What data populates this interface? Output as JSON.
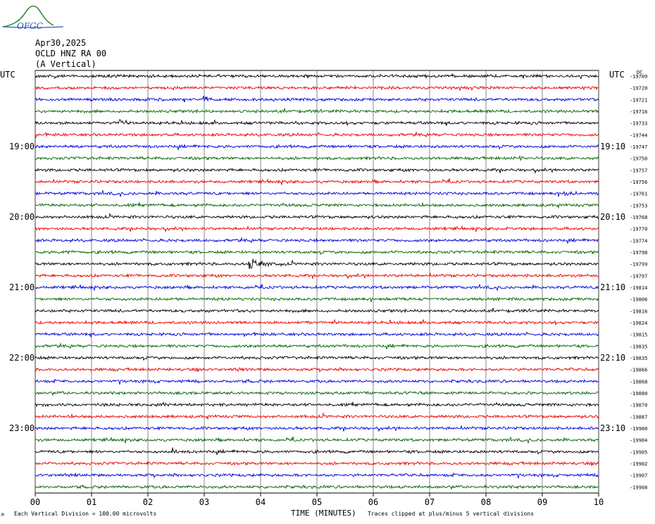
{
  "header": {
    "logo_text": "OFGC",
    "date": "Apr30,2025",
    "station": "OCLD HNZ RA 00",
    "component": "(A Vertical)"
  },
  "left_axis": {
    "label": "UTC",
    "hour_labels": [
      {
        "row": 6,
        "text": "19:00"
      },
      {
        "row": 12,
        "text": "20:00"
      },
      {
        "row": 18,
        "text": "21:00"
      },
      {
        "row": 24,
        "text": "22:00"
      },
      {
        "row": 30,
        "text": "23:00"
      }
    ]
  },
  "right_axis": {
    "label": "UTC",
    "dc_label": "DC",
    "hour_labels": [
      {
        "row": 6,
        "text": "19:10"
      },
      {
        "row": 12,
        "text": "20:10"
      },
      {
        "row": 18,
        "text": "21:10"
      },
      {
        "row": 24,
        "text": "22:10"
      },
      {
        "row": 30,
        "text": "23:10"
      }
    ],
    "dc_offsets": [
      "-19709",
      "-19720",
      "-19721",
      "-19716",
      "-19733",
      "-19744",
      "-19747",
      "-19750",
      "-19757",
      "-19756",
      "-19761",
      "-19753",
      "-19768",
      "-19770",
      "-19774",
      "-19798",
      "-19799",
      "-19797",
      "-19814",
      "-19806",
      "-19816",
      "-19824",
      "-19815",
      "-19835",
      "-19835",
      "-19866",
      "-19868",
      "-19880",
      "-19870",
      "-19887",
      "-19900",
      "-19904",
      "-19905",
      "-19902",
      "-19907",
      "-19908"
    ]
  },
  "footer": {
    "scale_note": "Each Vertical Division =  100.00 microvolts",
    "x_title": "TIME (MINUTES)",
    "clip_note": "Traces clipped at plus/minus 5 vertical divisions"
  },
  "chart_data": {
    "type": "line",
    "xlabel": "TIME (MINUTES)",
    "xlim": [
      0,
      10
    ],
    "x_ticks": [
      "00",
      "01",
      "02",
      "03",
      "04",
      "05",
      "06",
      "07",
      "08",
      "09",
      "10"
    ],
    "rows": 36,
    "minutes_per_row": 10,
    "series_colors": [
      "#000000",
      "#ee0000",
      "#0000dd",
      "#006600"
    ],
    "events": [
      {
        "row": 16,
        "minute": 3.8,
        "amplitude": 7.5,
        "duration_min": 0.6
      },
      {
        "row": 2,
        "minute": 3.0,
        "amplitude": 4,
        "duration_min": 0.2
      },
      {
        "row": 10,
        "minute": 9.4,
        "amplitude": 4,
        "duration_min": 0.3
      },
      {
        "row": 7,
        "minute": 8.6,
        "amplitude": 4,
        "duration_min": 0.15
      },
      {
        "row": 15,
        "minute": 0.5,
        "amplitude": 3,
        "duration_min": 0.2
      },
      {
        "row": 32,
        "minute": 2.45,
        "amplitude": 6,
        "duration_min": 0.1
      },
      {
        "row": 21,
        "minute": 4.85,
        "amplitude": 4,
        "duration_min": 0.1
      },
      {
        "row": 4,
        "minute": 1.5,
        "amplitude": 4,
        "duration_min": 0.1
      },
      {
        "row": 13,
        "minute": 8.35,
        "amplitude": 3,
        "duration_min": 0.1
      },
      {
        "row": 25,
        "minute": 3.6,
        "amplitude": 3,
        "duration_min": 0.2
      }
    ]
  }
}
